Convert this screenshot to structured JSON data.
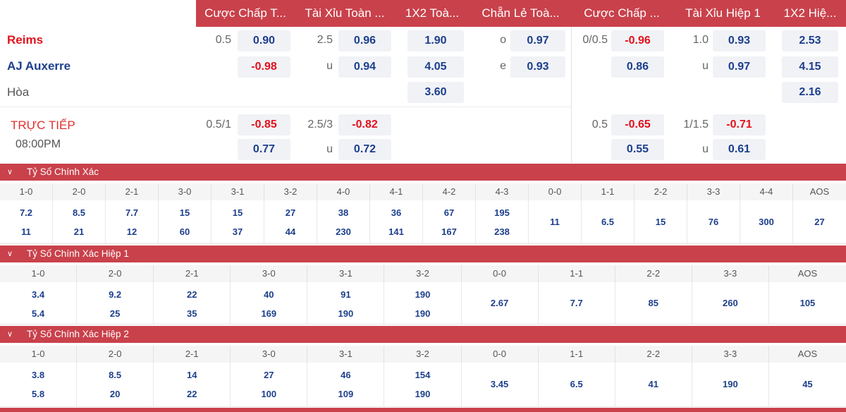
{
  "header": [
    "Cược Chấp T...",
    "Tài Xỉu Toàn ...",
    "1X2 Toà...",
    "Chẵn Lẻ Toà...",
    "Cược Chấp ...",
    "Tài Xỉu Hiệp 1",
    "1X2 Hiệ..."
  ],
  "match": {
    "home": "Reims",
    "away": "AJ Auxerre",
    "draw": "Hòa",
    "live": "TRỰC TIẾP",
    "time": "08:00PM"
  },
  "main_odds": {
    "row1": {
      "hdp_line": "0.5",
      "hdp_odd": "0.90",
      "ou_line": "2.5",
      "ou_odd": "0.96",
      "x12": "1.90",
      "oe_label": "o",
      "oe_odd": "0.97",
      "h1_hdp_line": "0/0.5",
      "h1_hdp_odd": "-0.96",
      "h1_ou_line": "1.0",
      "h1_ou_odd": "0.93",
      "h1_x12": "2.53"
    },
    "row2": {
      "hdp_odd": "-0.98",
      "ou_label": "u",
      "ou_odd": "0.94",
      "x12": "4.05",
      "oe_label": "e",
      "oe_odd": "0.93",
      "h1_hdp_odd": "0.86",
      "h1_ou_label": "u",
      "h1_ou_odd": "0.97",
      "h1_x12": "4.15"
    },
    "row3": {
      "x12": "3.60",
      "h1_x12": "2.16"
    },
    "row4": {
      "hdp_line": "0.5/1",
      "hdp_odd": "-0.85",
      "ou_line": "2.5/3",
      "ou_odd": "-0.82",
      "h1_hdp_line": "0.5",
      "h1_hdp_odd": "-0.65",
      "h1_ou_line": "1/1.5",
      "h1_ou_odd": "-0.71"
    },
    "row5": {
      "hdp_odd": "0.77",
      "ou_label": "u",
      "ou_odd": "0.72",
      "h1_hdp_odd": "0.55",
      "h1_ou_label": "u",
      "h1_ou_odd": "0.61"
    }
  },
  "sections": [
    {
      "title": "Tỷ Số Chính Xác",
      "columns": [
        {
          "label": "1-0",
          "top": "7.2",
          "bottom": "11"
        },
        {
          "label": "2-0",
          "top": "8.5",
          "bottom": "21"
        },
        {
          "label": "2-1",
          "top": "7.7",
          "bottom": "12"
        },
        {
          "label": "3-0",
          "top": "15",
          "bottom": "60"
        },
        {
          "label": "3-1",
          "top": "15",
          "bottom": "37"
        },
        {
          "label": "3-2",
          "top": "27",
          "bottom": "44"
        },
        {
          "label": "4-0",
          "top": "38",
          "bottom": "230"
        },
        {
          "label": "4-1",
          "top": "36",
          "bottom": "141"
        },
        {
          "label": "4-2",
          "top": "67",
          "bottom": "167"
        },
        {
          "label": "4-3",
          "top": "195",
          "bottom": "238"
        },
        {
          "label": "0-0",
          "single": "11"
        },
        {
          "label": "1-1",
          "single": "6.5"
        },
        {
          "label": "2-2",
          "single": "15"
        },
        {
          "label": "3-3",
          "single": "76"
        },
        {
          "label": "4-4",
          "single": "300"
        },
        {
          "label": "AOS",
          "single": "27"
        }
      ]
    },
    {
      "title": "Tỷ Số Chính Xác Hiệp 1",
      "columns": [
        {
          "label": "1-0",
          "top": "3.4",
          "bottom": "5.4"
        },
        {
          "label": "2-0",
          "top": "9.2",
          "bottom": "25"
        },
        {
          "label": "2-1",
          "top": "22",
          "bottom": "35"
        },
        {
          "label": "3-0",
          "top": "40",
          "bottom": "169"
        },
        {
          "label": "3-1",
          "top": "91",
          "bottom": "190"
        },
        {
          "label": "3-2",
          "top": "190",
          "bottom": "190"
        },
        {
          "label": "0-0",
          "single": "2.67"
        },
        {
          "label": "1-1",
          "single": "7.7"
        },
        {
          "label": "2-2",
          "single": "85"
        },
        {
          "label": "3-3",
          "single": "260"
        },
        {
          "label": "AOS",
          "single": "105"
        }
      ]
    },
    {
      "title": "Tỷ Số Chính Xác Hiệp 2",
      "columns": [
        {
          "label": "1-0",
          "top": "3.8",
          "bottom": "5.8"
        },
        {
          "label": "2-0",
          "top": "8.5",
          "bottom": "20"
        },
        {
          "label": "2-1",
          "top": "14",
          "bottom": "22"
        },
        {
          "label": "3-0",
          "top": "27",
          "bottom": "100"
        },
        {
          "label": "3-1",
          "top": "46",
          "bottom": "109"
        },
        {
          "label": "3-2",
          "top": "154",
          "bottom": "190"
        },
        {
          "label": "0-0",
          "single": "3.45"
        },
        {
          "label": "1-1",
          "single": "6.5"
        },
        {
          "label": "2-2",
          "single": "41"
        },
        {
          "label": "3-3",
          "single": "190"
        },
        {
          "label": "AOS",
          "single": "45"
        }
      ]
    }
  ]
}
